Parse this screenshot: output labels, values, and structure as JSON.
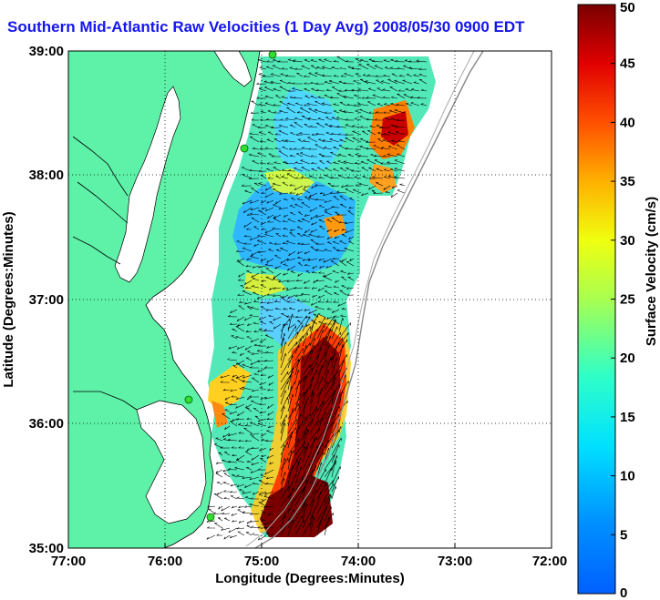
{
  "title": "Southern Mid-Atlantic Raw Velocities (1 Day Avg) 2008/05/30 0900 EDT",
  "x_axis": {
    "label": "Longitude (Degrees:Minutes)",
    "ticks": [
      "77:00",
      "76:00",
      "75:00",
      "74:00",
      "73:00",
      "72:00"
    ]
  },
  "y_axis": {
    "label": "Latitude (Degrees:Minutes)",
    "ticks": [
      "39:00",
      "38:00",
      "37:00",
      "36:00",
      "35:00"
    ]
  },
  "colorbar": {
    "label": "Surface Velocity (cm/s)",
    "ticks": [
      "50",
      "45",
      "40",
      "35",
      "30",
      "25",
      "20",
      "15",
      "10",
      "5",
      "0"
    ],
    "min": 0,
    "max": 50,
    "colormap": "jet"
  },
  "colors": {
    "land": "#5ef2a8",
    "title": "#1616f0",
    "station": "#33dd33"
  },
  "map": {
    "lon_range": [
      "77:00",
      "72:00"
    ],
    "lat_range": [
      "35:00",
      "39:00"
    ],
    "grid": "dotted"
  }
}
